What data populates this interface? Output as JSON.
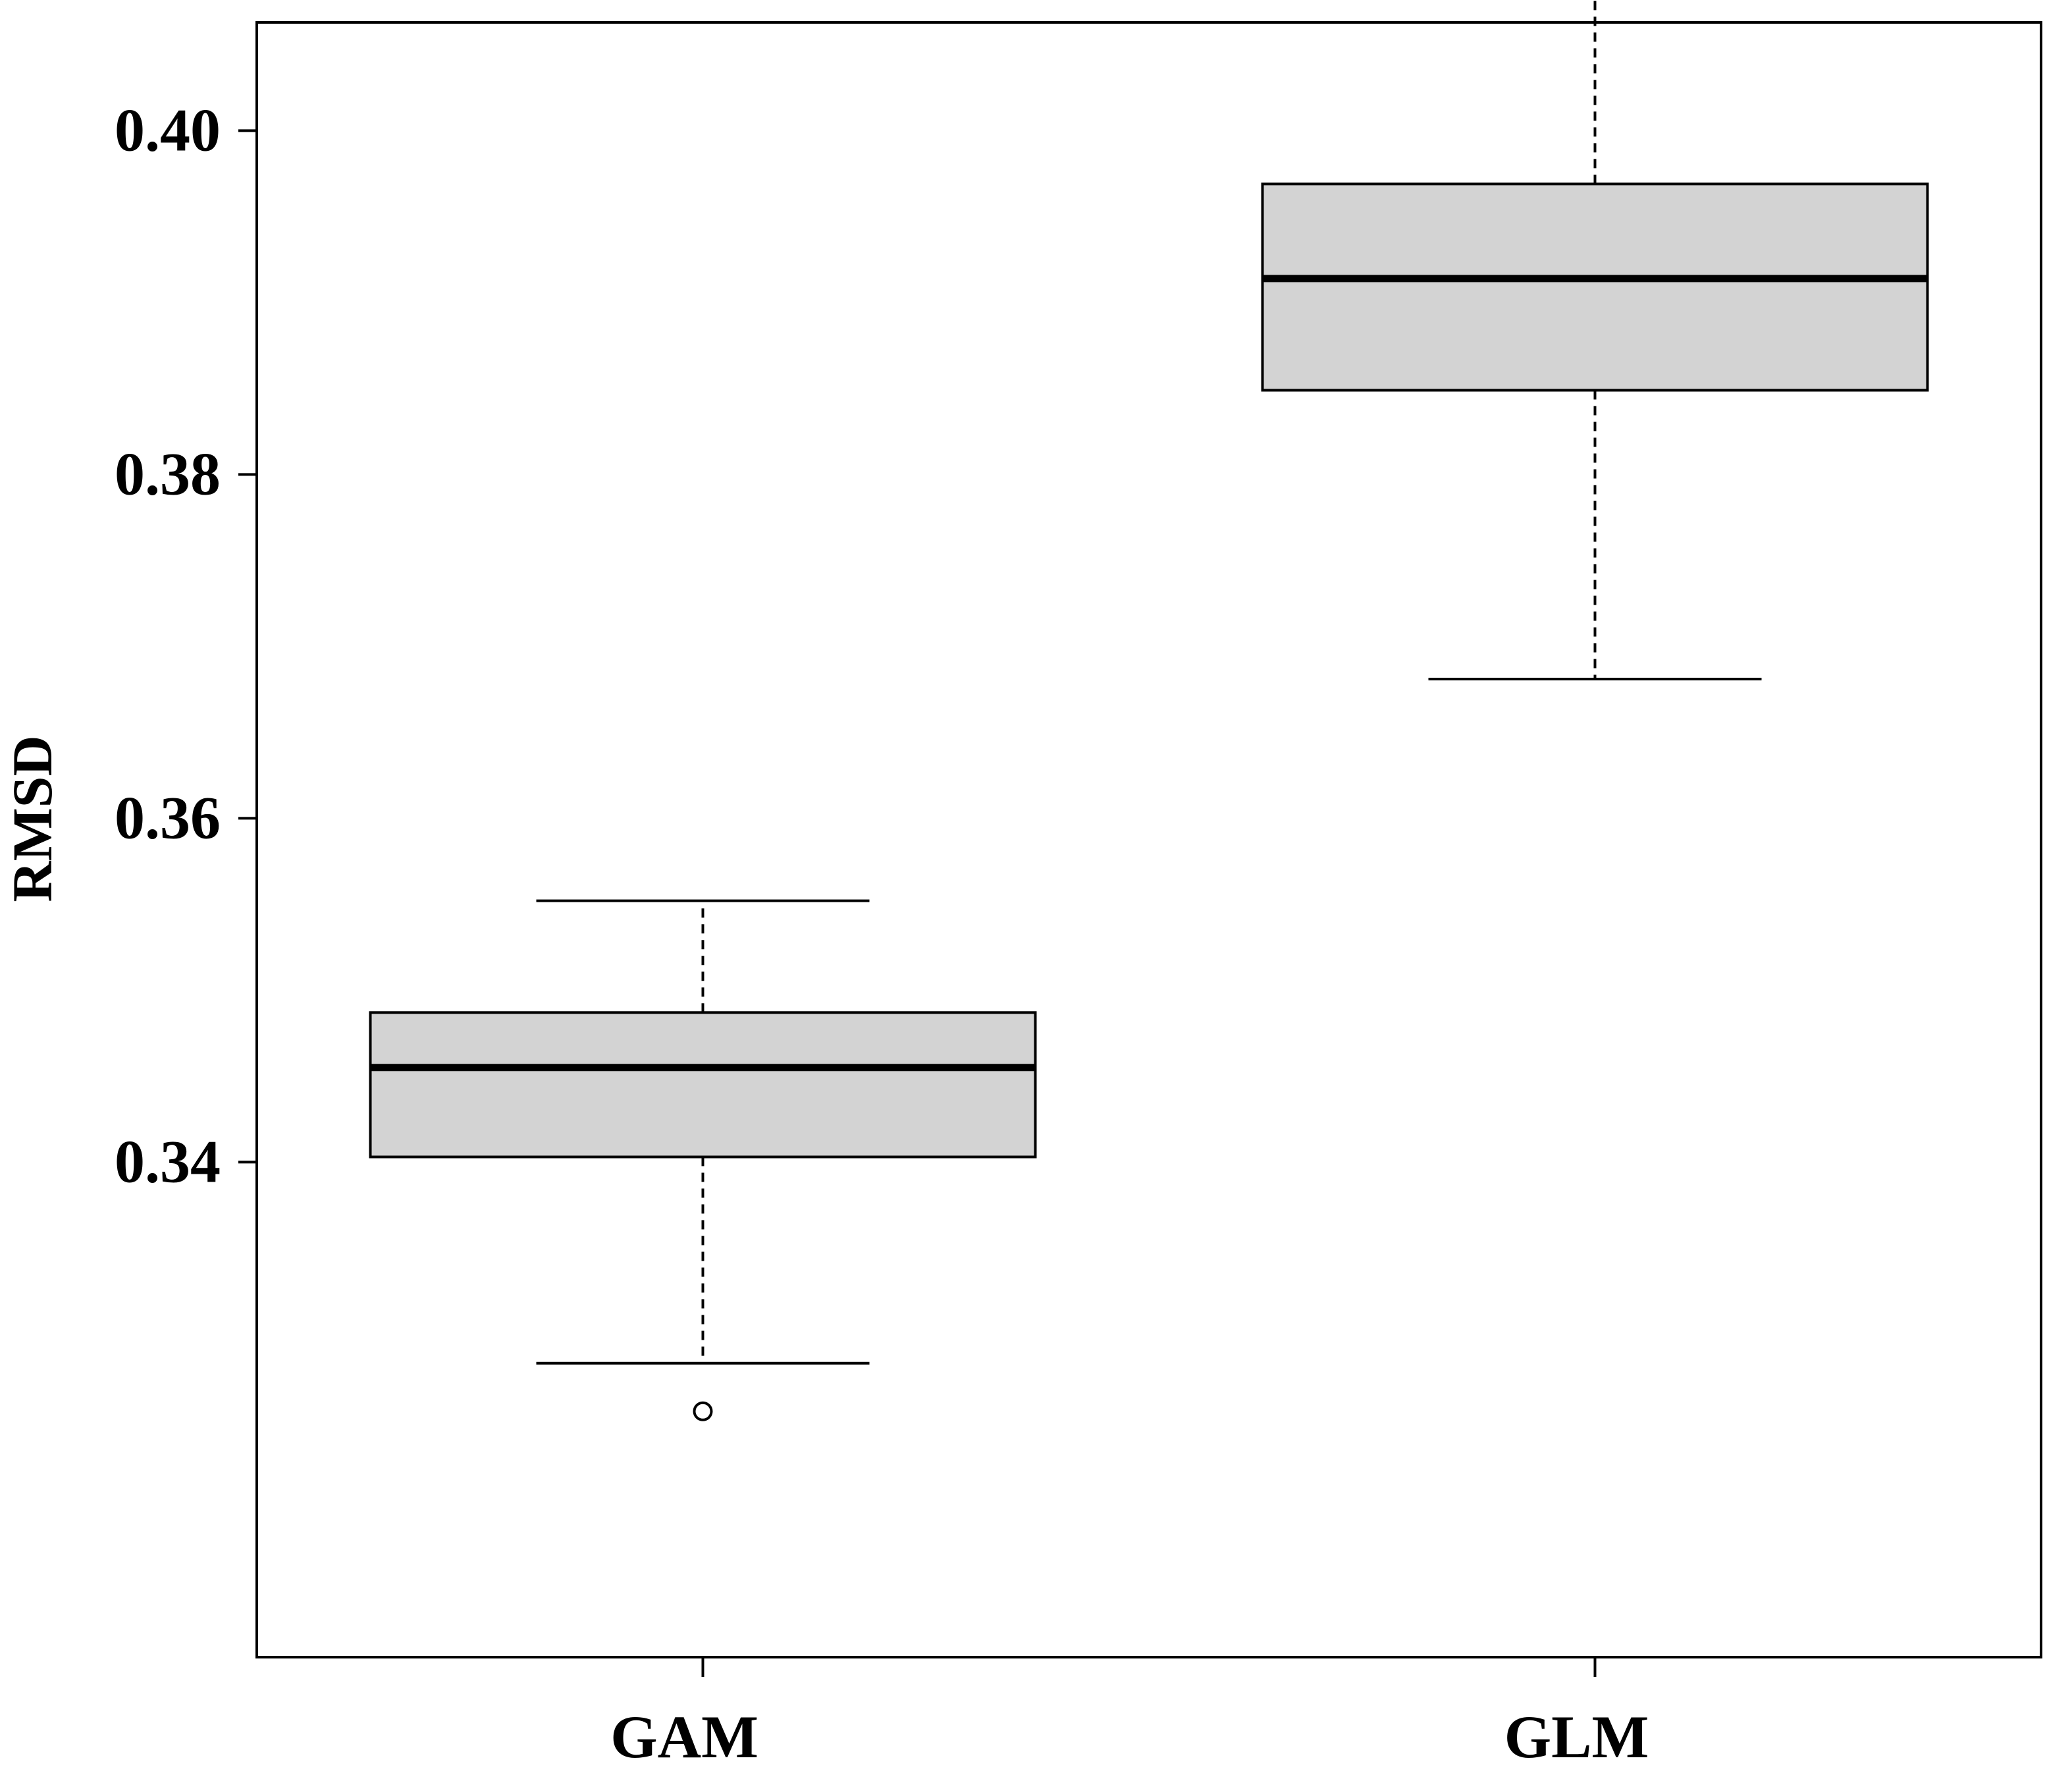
{
  "chart_data": {
    "type": "box",
    "ylabel": "RMSD",
    "xlabel": "",
    "categories": [
      "GAM",
      "GLM"
    ],
    "y_ticks": [
      0.34,
      0.36,
      0.38,
      0.4
    ],
    "y_tick_labels": [
      "0.34",
      "0.36",
      "0.38",
      "0.40"
    ],
    "ylim": [
      0.3112,
      0.4063
    ],
    "grid": false,
    "boxes": [
      {
        "category": "GAM",
        "whisker_low": 0.3283,
        "q1": 0.3403,
        "median": 0.3455,
        "q3": 0.3487,
        "whisker_high": 0.3552,
        "outliers": [
          0.3255
        ]
      },
      {
        "category": "GLM",
        "whisker_low": 0.3681,
        "q1": 0.3849,
        "median": 0.3914,
        "q3": 0.3969,
        "whisker_high": 0.4131,
        "outliers": []
      }
    ],
    "colors": {
      "box_fill": "#d3d3d3",
      "stroke": "#000000",
      "background": "#ffffff"
    }
  }
}
